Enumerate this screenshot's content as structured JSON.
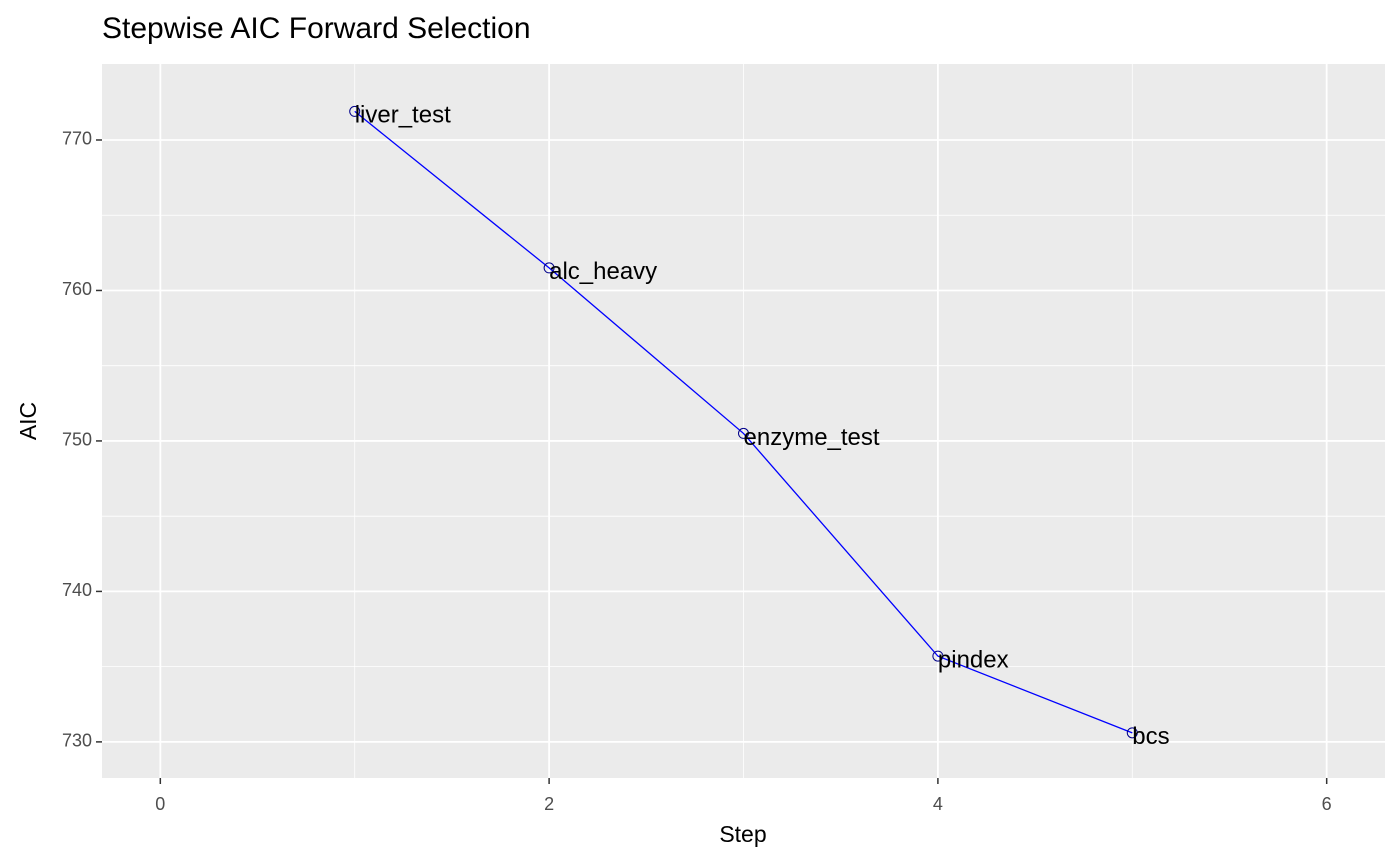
{
  "chart_data": {
    "type": "line",
    "title": "Stepwise AIC Forward Selection",
    "x_label": "Step",
    "y_label": "AIC",
    "x": [
      1,
      2,
      3,
      4,
      5
    ],
    "series": [
      {
        "color": "#0000ff",
        "values": [
          771.9,
          761.5,
          750.5,
          735.7,
          730.6
        ]
      }
    ],
    "labels": [
      "liver_test",
      "alc_heavy",
      "enzyme_test",
      "pindex",
      "bcs"
    ],
    "xlim": [
      -0.3,
      6.3
    ],
    "xticks": [
      0,
      2,
      4,
      6
    ],
    "ylim": [
      727.6,
      775.05
    ],
    "yticks": [
      730,
      740,
      750,
      760,
      770
    ],
    "grid": true
  }
}
